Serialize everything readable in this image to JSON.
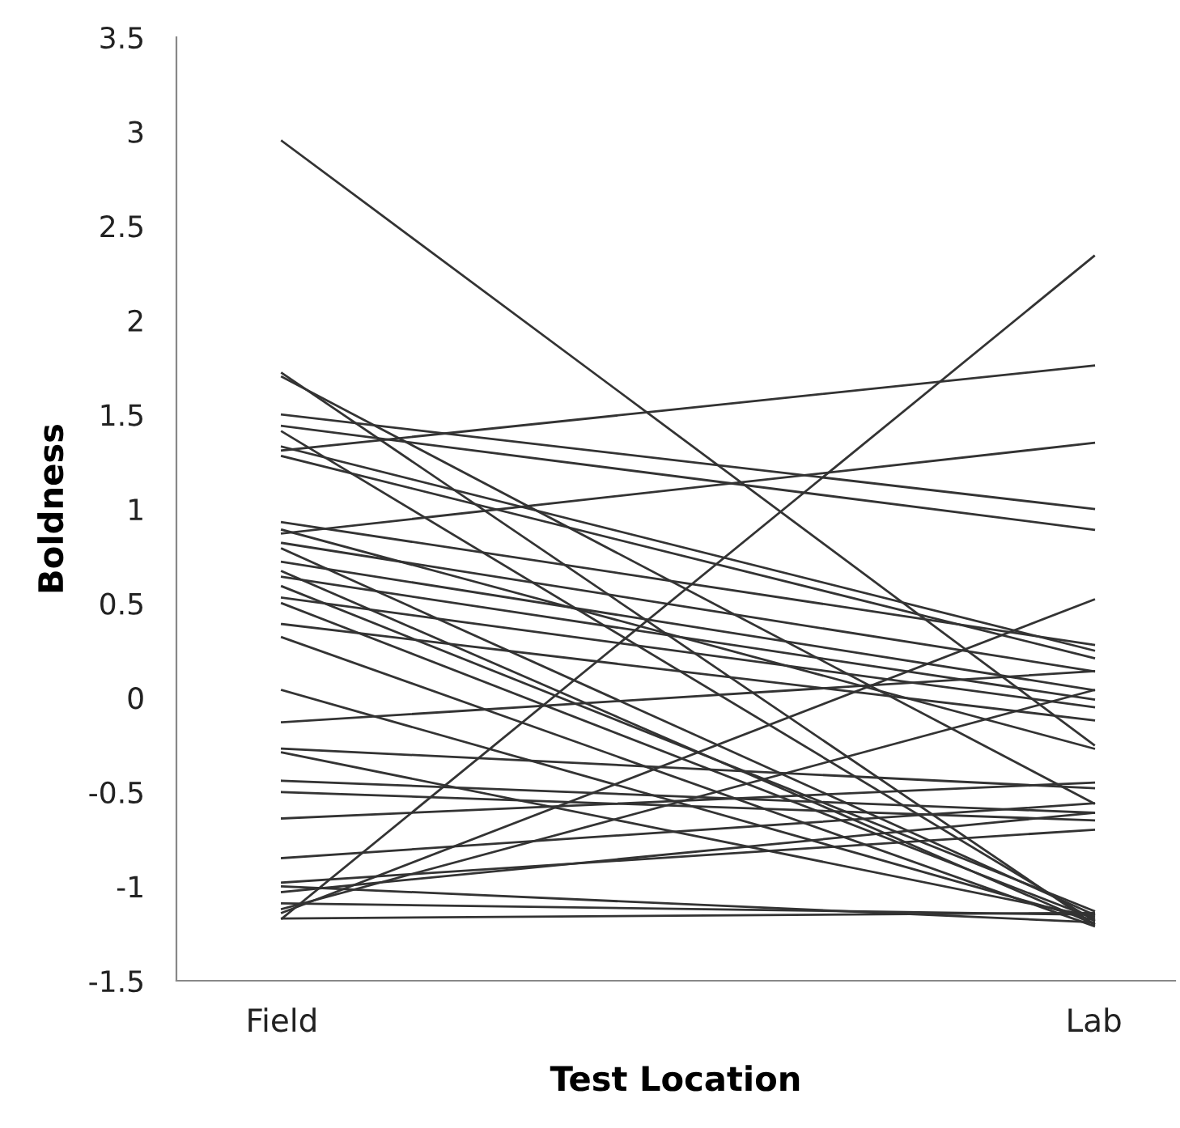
{
  "chart_data": {
    "type": "line",
    "xlabel": "Test Location",
    "ylabel": "Boldness",
    "categories": [
      "Field",
      "Lab"
    ],
    "ylim": [
      -1.5,
      3.5
    ],
    "yticks": [
      {
        "value": -1.5,
        "label": "-1.5"
      },
      {
        "value": -1,
        "label": "-1"
      },
      {
        "value": -0.5,
        "label": "-0.5"
      },
      0,
      0.5,
      1,
      1.5,
      2,
      2.5,
      3,
      3.5
    ],
    "marker": "none",
    "line_style": "solid",
    "series": [
      {
        "color": "#333333",
        "values": [
          2.95,
          -0.25
        ]
      },
      {
        "color": "#333333",
        "values": [
          1.72,
          -1.2
        ]
      },
      {
        "color": "#333333",
        "values": [
          1.7,
          -0.56
        ]
      },
      {
        "color": "#333333",
        "values": [
          1.5,
          1.0
        ]
      },
      {
        "color": "#333333",
        "values": [
          1.44,
          0.89
        ]
      },
      {
        "color": "#333333",
        "values": [
          1.41,
          -1.18
        ]
      },
      {
        "color": "#333333",
        "values": [
          1.33,
          0.25
        ]
      },
      {
        "color": "#333333",
        "values": [
          1.31,
          1.76
        ]
      },
      {
        "color": "#333333",
        "values": [
          1.28,
          0.21
        ]
      },
      {
        "color": "#333333",
        "values": [
          0.93,
          0.28
        ]
      },
      {
        "color": "#333333",
        "values": [
          0.89,
          -0.27
        ]
      },
      {
        "color": "#333333",
        "values": [
          0.87,
          1.35
        ]
      },
      {
        "color": "#333333",
        "values": [
          0.82,
          0.14
        ]
      },
      {
        "color": "#333333",
        "values": [
          0.79,
          -1.15
        ]
      },
      {
        "color": "#333333",
        "values": [
          0.72,
          0.04
        ]
      },
      {
        "color": "#333333",
        "values": [
          0.67,
          -1.2
        ]
      },
      {
        "color": "#333333",
        "values": [
          0.64,
          -0.01
        ]
      },
      {
        "color": "#333333",
        "values": [
          0.59,
          -1.13
        ]
      },
      {
        "color": "#333333",
        "values": [
          0.53,
          -0.05
        ]
      },
      {
        "color": "#333333",
        "values": [
          0.5,
          -1.17
        ]
      },
      {
        "color": "#333333",
        "values": [
          0.39,
          -0.12
        ]
      },
      {
        "color": "#333333",
        "values": [
          0.32,
          -1.21
        ]
      },
      {
        "color": "#333333",
        "values": [
          0.04,
          -1.18
        ]
      },
      {
        "color": "#333333",
        "values": [
          -0.13,
          0.14
        ]
      },
      {
        "color": "#333333",
        "values": [
          -0.27,
          -0.48
        ]
      },
      {
        "color": "#333333",
        "values": [
          -0.29,
          -1.16
        ]
      },
      {
        "color": "#333333",
        "values": [
          -0.44,
          -0.61
        ]
      },
      {
        "color": "#333333",
        "values": [
          -0.5,
          -0.65
        ]
      },
      {
        "color": "#333333",
        "values": [
          -0.64,
          -0.45
        ]
      },
      {
        "color": "#333333",
        "values": [
          -0.85,
          -0.56
        ]
      },
      {
        "color": "#333333",
        "values": [
          -0.98,
          -0.7
        ]
      },
      {
        "color": "#333333",
        "values": [
          -1.0,
          -1.19
        ]
      },
      {
        "color": "#333333",
        "values": [
          -1.03,
          -0.61
        ]
      },
      {
        "color": "#333333",
        "values": [
          -1.09,
          -1.15
        ]
      },
      {
        "color": "#333333",
        "values": [
          -1.12,
          0.04
        ]
      },
      {
        "color": "#333333",
        "values": [
          -1.14,
          0.52
        ]
      },
      {
        "color": "#333333",
        "values": [
          -1.17,
          2.34
        ]
      },
      {
        "color": "#333333",
        "values": [
          -1.17,
          -1.14
        ]
      }
    ]
  }
}
